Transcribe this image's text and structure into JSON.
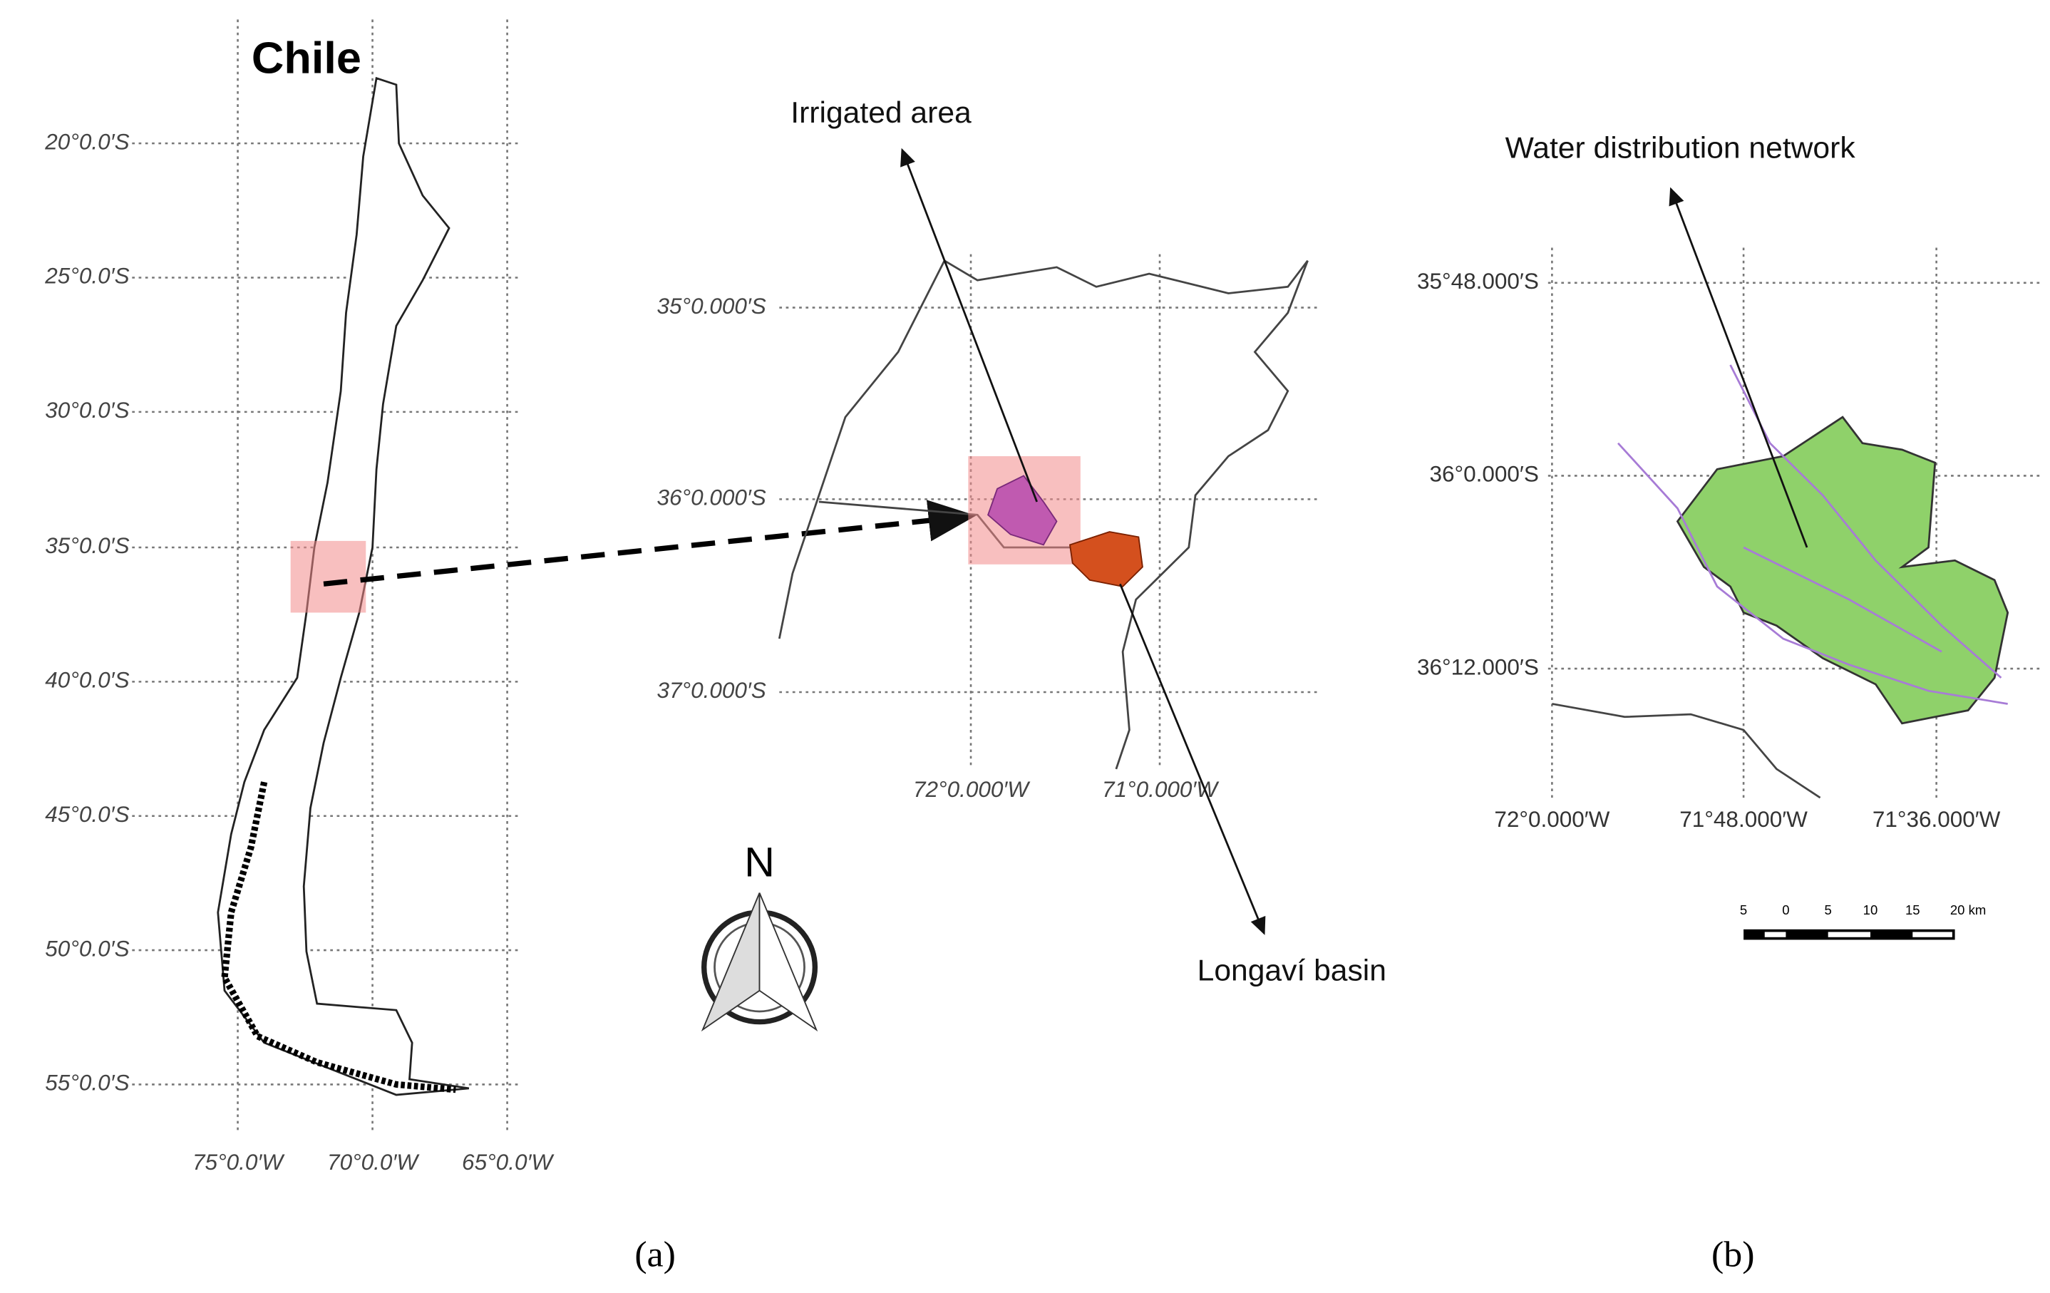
{
  "panel_a": {
    "caption": "(a)",
    "country_map": {
      "title": "Chile",
      "lat_labels": [
        "20°0.0′S",
        "25°0.0′S",
        "30°0.0′S",
        "35°0.0′S",
        "40°0.0′S",
        "45°0.0′S",
        "50°0.0′S",
        "55°0.0′S"
      ],
      "lon_labels": [
        "75°0.0′W",
        "70°0.0′W",
        "65°0.0′W"
      ]
    },
    "basin_map": {
      "lat_labels": [
        "35°0.000′S",
        "36°0.000′S",
        "37°0.000′S"
      ],
      "lon_labels": [
        "72°0.000′W",
        "71°0.000′W"
      ],
      "irrigated_label": "Irrigated area",
      "basin_label": "Longaví basin"
    },
    "north_label": "N"
  },
  "panel_b": {
    "caption": "(b)",
    "lat_labels": [
      "35°48.000′S",
      "36°0.000′S",
      "36°12.000′S"
    ],
    "lon_labels": [
      "72°0.000′W",
      "71°48.000′W",
      "71°36.000′W"
    ],
    "network_label": "Water distribution network",
    "scale_labels": [
      "5",
      "0",
      "5",
      "10",
      "15",
      "20 km"
    ]
  }
}
